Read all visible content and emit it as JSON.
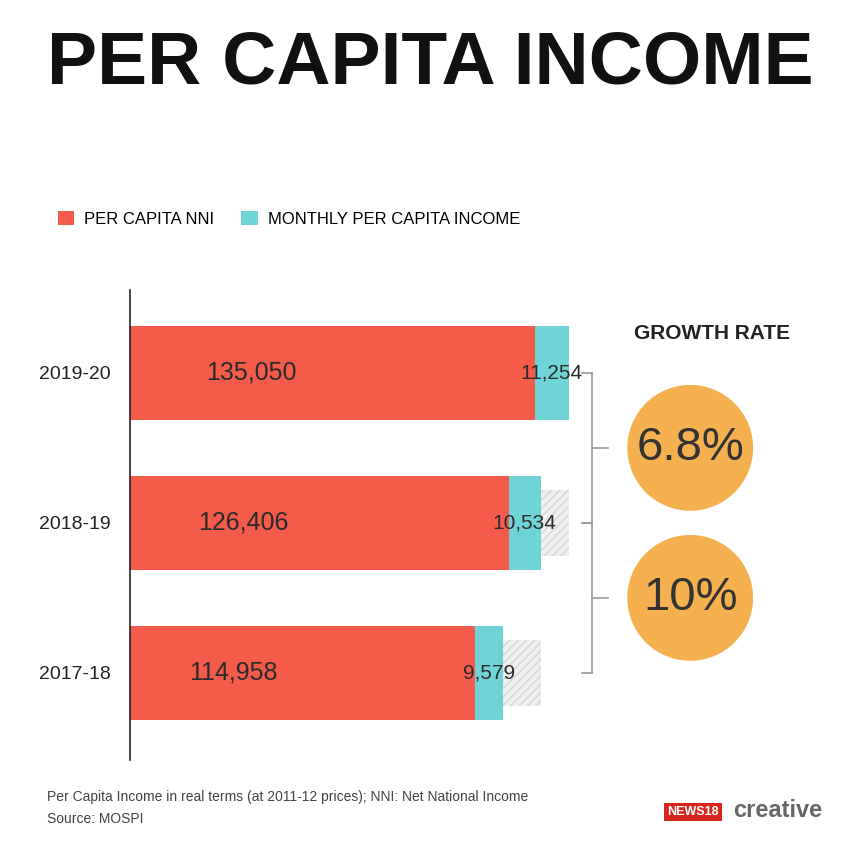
{
  "chart_data": {
    "type": "bar",
    "title": "PER CAPITA INCOME",
    "orientation": "horizontal",
    "stacked": true,
    "data_labels": true,
    "legend": "upper left",
    "grid": false,
    "tick_labels": "y",
    "categories": [
      "2019-20",
      "2018-19",
      "2017-18"
    ],
    "series": [
      {
        "name": "PER CAPITA NNI",
        "color": "#f55b4a",
        "values": [
          135050,
          126406,
          114958
        ],
        "value_labels": [
          "135,050",
          "126,406",
          "114,958"
        ]
      },
      {
        "name": "MONTHLY PER CAPITA INCOME",
        "color": "#6fd4d8",
        "values": [
          11254,
          10534,
          9579
        ],
        "value_labels": [
          "11,254",
          "10,534",
          "9,579"
        ]
      }
    ],
    "xlim": [
      0,
      150000
    ],
    "growth_rate": {
      "title": "GROWTH RATE",
      "values": [
        6.8,
        10
      ],
      "value_labels": [
        "6.8%",
        "10%"
      ]
    },
    "footnote": "Per Capita Income in real terms (at 2011-12 prices); NNI: Net National Income",
    "source": "Source: MOSPI",
    "credit": [
      "NEWS18",
      "creative"
    ]
  }
}
